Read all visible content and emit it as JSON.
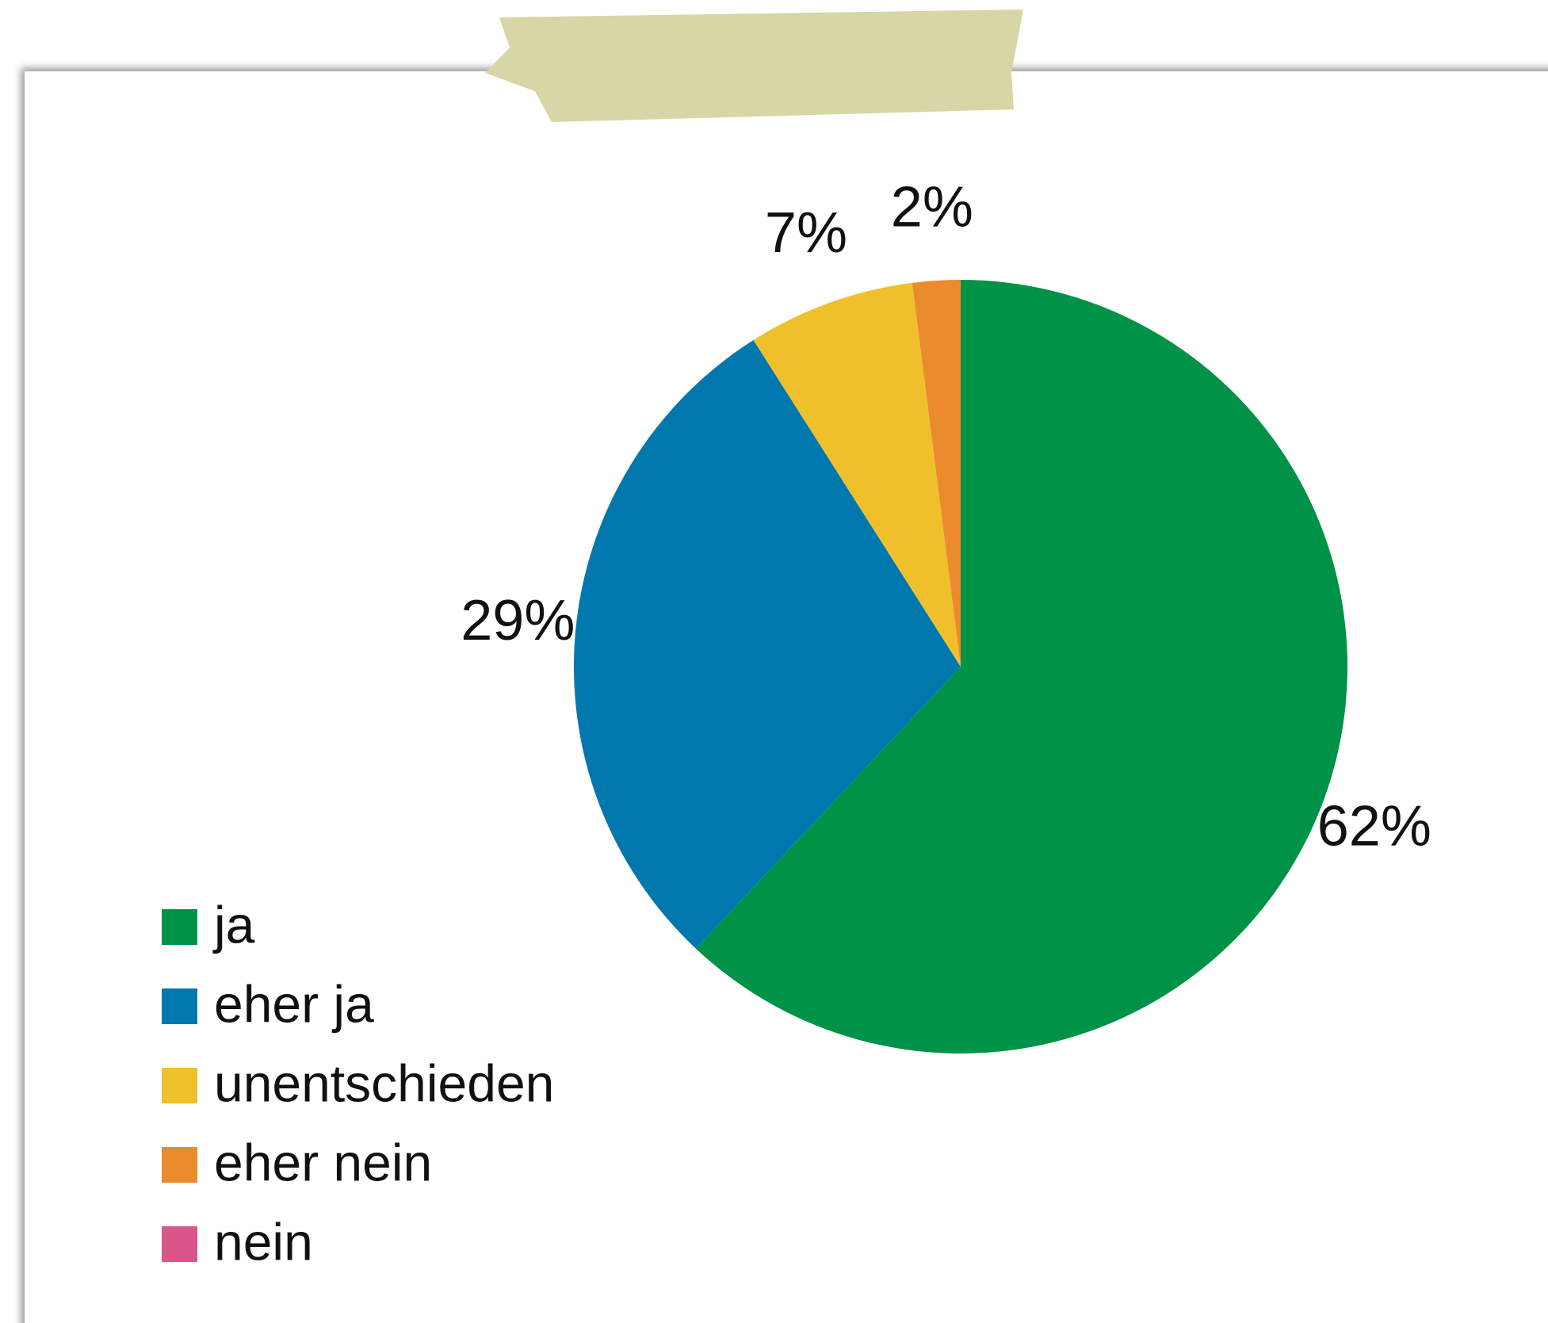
{
  "chart_data": {
    "type": "pie",
    "categories": [
      "ja",
      "eher ja",
      "unentschieden",
      "eher nein",
      "nein"
    ],
    "values": [
      62,
      29,
      7,
      2,
      0
    ],
    "value_labels": [
      "62%",
      "29%",
      "7%",
      "2%",
      null
    ],
    "colors": [
      "#009247",
      "#0078ae",
      "#f0c02c",
      "#ec8b2e",
      "#d9568a"
    ]
  }
}
